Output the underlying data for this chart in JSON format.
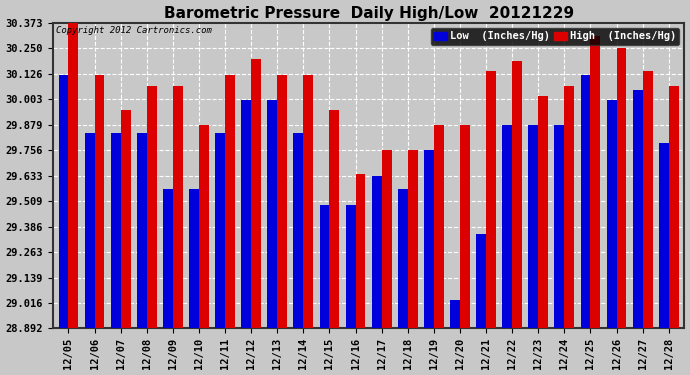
{
  "title": "Barometric Pressure  Daily High/Low  20121229",
  "copyright": "Copyright 2012 Cartronics.com",
  "legend_low_label": "Low  (Inches/Hg)",
  "legend_high_label": "High  (Inches/Hg)",
  "categories": [
    "12/05",
    "12/06",
    "12/07",
    "12/08",
    "12/09",
    "12/10",
    "12/11",
    "12/12",
    "12/13",
    "12/14",
    "12/15",
    "12/16",
    "12/17",
    "12/18",
    "12/19",
    "12/20",
    "12/21",
    "12/22",
    "12/23",
    "12/24",
    "12/25",
    "12/26",
    "12/27",
    "12/28"
  ],
  "low_values": [
    30.12,
    29.84,
    29.84,
    29.84,
    29.57,
    29.57,
    29.84,
    30.0,
    30.0,
    29.84,
    29.49,
    29.49,
    29.63,
    29.57,
    29.76,
    29.03,
    29.35,
    29.88,
    29.88,
    29.88,
    30.12,
    30.0,
    30.05,
    29.79
  ],
  "high_values": [
    30.373,
    30.12,
    29.95,
    30.07,
    30.07,
    29.88,
    30.12,
    30.2,
    30.12,
    30.12,
    29.95,
    29.64,
    29.76,
    29.76,
    29.88,
    29.88,
    30.14,
    30.19,
    30.02,
    30.07,
    30.31,
    30.25,
    30.14,
    30.07
  ],
  "ylim_min": 28.892,
  "ylim_max": 30.373,
  "yticks": [
    28.892,
    29.016,
    29.139,
    29.263,
    29.386,
    29.509,
    29.633,
    29.756,
    29.879,
    30.003,
    30.126,
    30.25,
    30.373
  ],
  "bar_width": 0.38,
  "low_color": "#0000dd",
  "high_color": "#dd0000",
  "bg_color": "#c8c8c8",
  "plot_bg_color": "#c8c8c8",
  "grid_color": "#ffffff",
  "title_fontsize": 11,
  "tick_fontsize": 7.5,
  "legend_fontsize": 7.5,
  "copyright_fontsize": 6.5
}
